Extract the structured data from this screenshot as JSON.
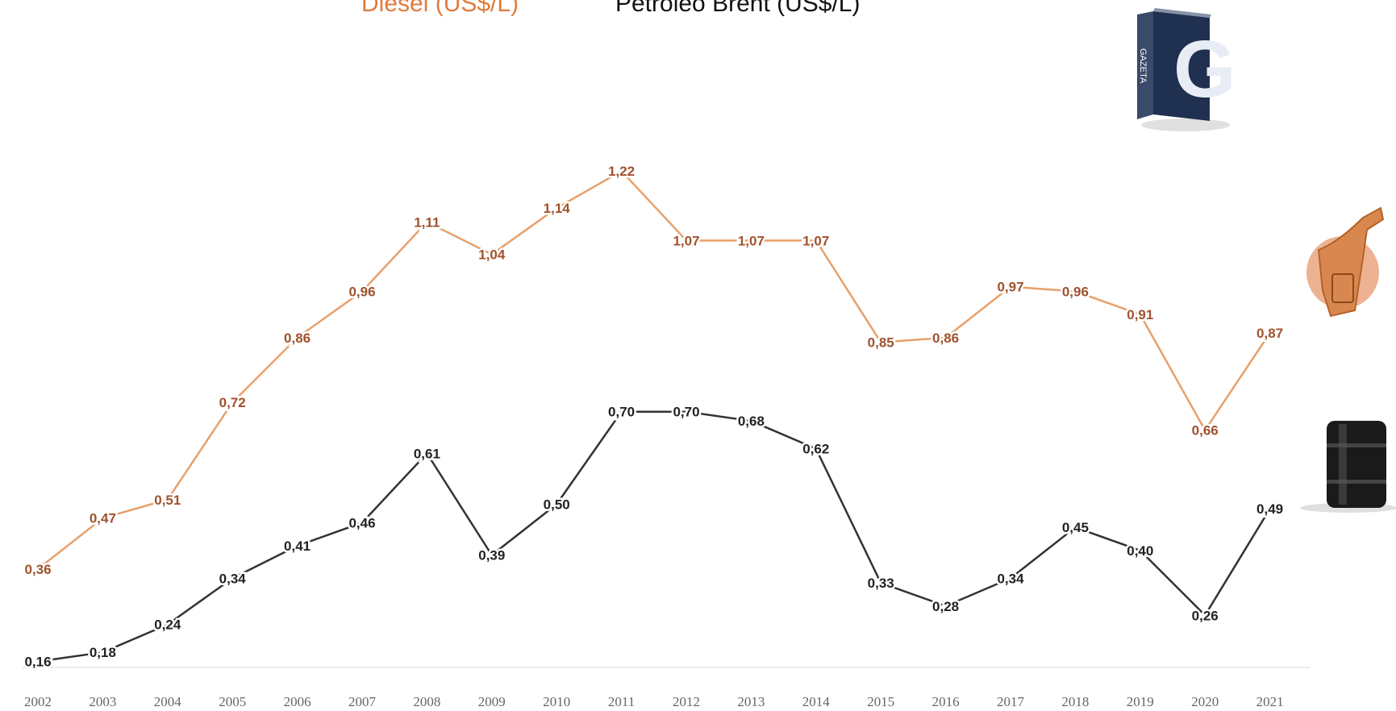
{
  "chart_data": {
    "type": "line",
    "title": "",
    "xlabel": "",
    "ylabel": "",
    "categories": [
      "2002",
      "2003",
      "2004",
      "2005",
      "2006",
      "2007",
      "2008",
      "2009",
      "2010",
      "2011",
      "2012",
      "2013",
      "2014",
      "2015",
      "2016",
      "2017",
      "2018",
      "2019",
      "2020",
      "2021"
    ],
    "series": [
      {
        "name": "Diesel (US$/L)",
        "color": "#e8a06b",
        "label_color": "#a0522d",
        "values": [
          0.36,
          0.47,
          0.51,
          0.72,
          0.86,
          0.96,
          1.11,
          1.04,
          1.14,
          1.22,
          1.07,
          1.07,
          1.07,
          0.85,
          0.86,
          0.97,
          0.96,
          0.91,
          0.66,
          0.87
        ],
        "labels": [
          "0,36",
          "0,47",
          "0,51",
          "0,72",
          "0,86",
          "0,96",
          "1,11",
          "1,04",
          "1,14",
          "1,22",
          "1,07",
          "1,07",
          "1,07",
          "0,85",
          "0,86",
          "0,97",
          "0,96",
          "0,91",
          "0,66",
          "0,87"
        ]
      },
      {
        "name": "Petróleo Brent (US$/L)",
        "color": "#333333",
        "label_color": "#222222",
        "values": [
          0.16,
          0.18,
          0.24,
          0.34,
          0.41,
          0.46,
          0.61,
          0.39,
          0.5,
          0.7,
          0.7,
          0.68,
          0.62,
          0.33,
          0.28,
          0.34,
          0.45,
          0.4,
          0.26,
          0.49
        ],
        "labels": [
          "0,16",
          "0,18",
          "0,24",
          "0,34",
          "0,41",
          "0,46",
          "0,61",
          "0,39",
          "0,50",
          "0,70",
          "0,70",
          "0,68",
          "0,62",
          "0,33",
          "0,28",
          "0,34",
          "0,45",
          "0,40",
          "0,26",
          "0,49"
        ]
      }
    ],
    "ylim": [
      0,
      1.4
    ],
    "grid": false,
    "legend": "top"
  },
  "icons": {
    "logo": "book-g-logo",
    "diesel": "fuel-nozzle-icon",
    "brent": "oil-barrel-icon"
  }
}
